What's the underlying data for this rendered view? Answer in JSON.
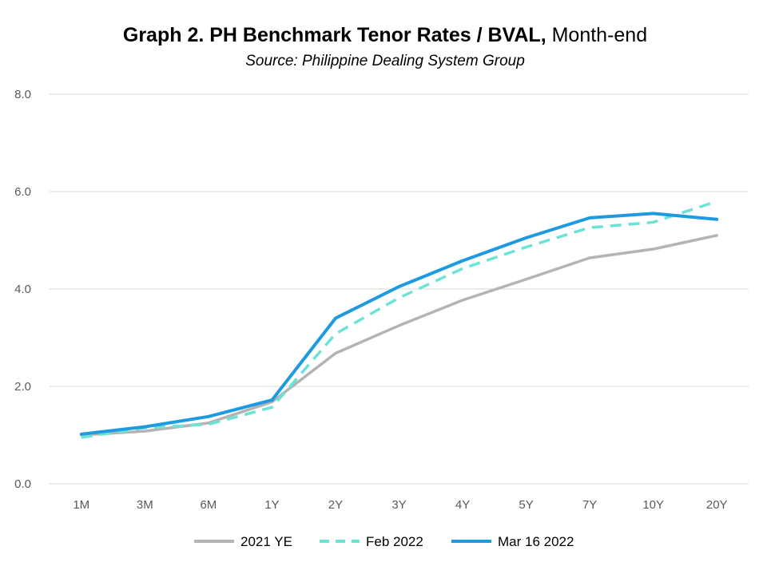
{
  "chart_data": {
    "type": "line",
    "title_bold": "Graph 2. PH Benchmark Tenor Rates / BVAL,",
    "title_rest": " Month-end",
    "subtitle": "Source: Philippine Dealing System Group",
    "xlabel": "",
    "ylabel": "",
    "categories": [
      "1M",
      "3M",
      "6M",
      "1Y",
      "2Y",
      "3Y",
      "4Y",
      "5Y",
      "7Y",
      "10Y",
      "20Y"
    ],
    "ylim": [
      0,
      8
    ],
    "yticks": [
      0,
      2,
      4,
      6,
      8
    ],
    "ytick_labels": [
      "0.0",
      "2.0",
      "4.0",
      "6.0",
      "8.0"
    ],
    "grid": true,
    "legend_position": "bottom",
    "series": [
      {
        "name": "2021 YE",
        "color": "#b4b4b4",
        "dash": "solid",
        "values": [
          1.0,
          1.08,
          1.25,
          1.68,
          2.68,
          3.25,
          3.77,
          4.2,
          4.64,
          4.82,
          5.1
        ]
      },
      {
        "name": "Feb 2022",
        "color": "#6be3d6",
        "dash": "dashed",
        "values": [
          0.95,
          1.15,
          1.22,
          1.57,
          3.08,
          3.82,
          4.42,
          4.86,
          5.26,
          5.37,
          5.8
        ]
      },
      {
        "name": "Mar 16 2022",
        "color": "#1e9be0",
        "dash": "solid",
        "values": [
          1.02,
          1.17,
          1.38,
          1.72,
          3.4,
          4.05,
          4.58,
          5.05,
          5.46,
          5.55,
          5.43
        ]
      }
    ]
  }
}
